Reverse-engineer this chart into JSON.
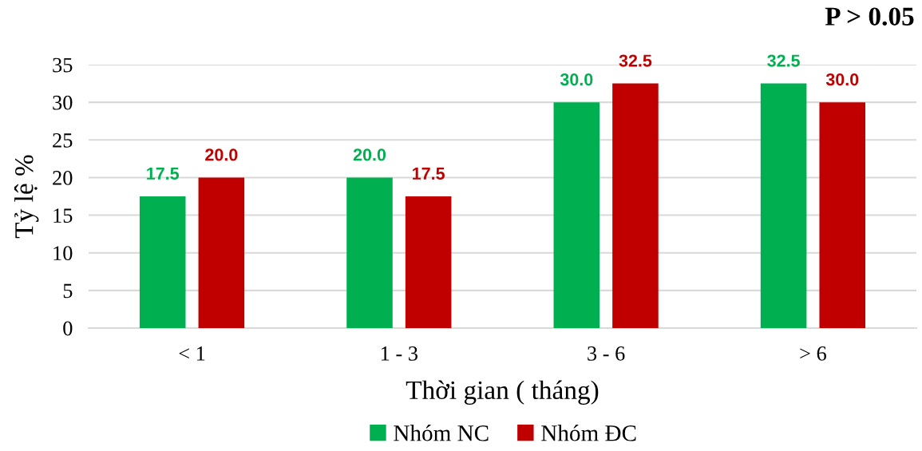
{
  "chart_data": {
    "type": "bar",
    "xlabel": "Thời gian ( tháng)",
    "ylabel": "Tỷ lệ %",
    "annotations": [
      "P > 0.05"
    ],
    "categories": [
      "< 1",
      "1 - 3",
      "3 - 6",
      "> 6"
    ],
    "series": [
      {
        "name": "Nhóm NC",
        "color": "#00b050",
        "values": [
          17.5,
          20.0,
          30.0,
          32.5
        ],
        "value_labels": [
          "17.5",
          "20.0",
          "30.0",
          "32.5"
        ]
      },
      {
        "name": "Nhóm ĐC",
        "color": "#c00000",
        "values": [
          20.0,
          17.5,
          32.5,
          30.0
        ],
        "value_labels": [
          "20.0",
          "17.5",
          "32.5",
          "30.0"
        ]
      }
    ],
    "ylim": [
      0,
      35
    ],
    "yticks": [
      0,
      5,
      10,
      15,
      20,
      25,
      30,
      35
    ],
    "grid": "y",
    "legend": "bottom"
  }
}
